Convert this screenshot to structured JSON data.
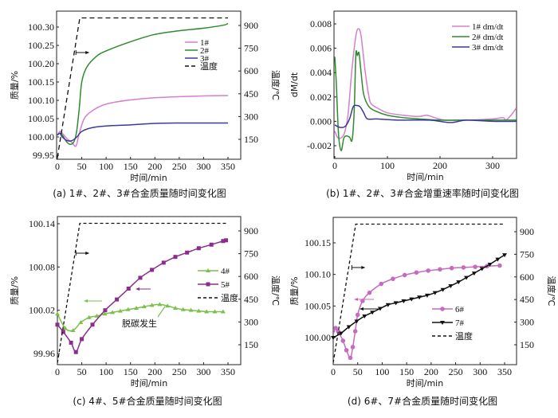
{
  "chart_data": [
    {
      "id": "a",
      "type": "line",
      "caption": "(a) 1#、2#、3#合金质量随时间变化图",
      "xlabel": "时间/min",
      "ylabel": "质量/%",
      "y2label": "温度/℃",
      "xlim": [
        0,
        350
      ],
      "ylim": [
        99.94,
        100.33
      ],
      "y2lim": [
        0,
        1000
      ],
      "xticks": [
        0,
        50,
        100,
        150,
        200,
        250,
        300,
        350
      ],
      "yticks": [
        99.95,
        100.0,
        100.05,
        100.1,
        100.15,
        100.2,
        100.25,
        100.3
      ],
      "ytick_labels": [
        "99.95",
        "100.00",
        "100.05",
        "100.10",
        "100.15",
        "100.20",
        "100.25",
        "100.30"
      ],
      "y2ticks": [
        150,
        300,
        450,
        600,
        750,
        900
      ],
      "legend": [
        "1#",
        "2#",
        "3#",
        "温度"
      ],
      "legend_position": "top-right",
      "series": [
        {
          "name": "1#",
          "color": "#d57fcf",
          "axis": "left",
          "style": "solid",
          "x": [
            0,
            5,
            10,
            20,
            30,
            38,
            45,
            55,
            70,
            90,
            110,
            150,
            200,
            250,
            300,
            350
          ],
          "y": [
            100.005,
            100.015,
            100.01,
            99.995,
            99.985,
            99.975,
            100.01,
            100.05,
            100.07,
            100.085,
            100.093,
            100.101,
            100.107,
            100.11,
            100.112,
            100.113
          ]
        },
        {
          "name": "2#",
          "color": "#2e8b2e",
          "axis": "left",
          "style": "solid",
          "x": [
            0,
            5,
            10,
            20,
            28,
            35,
            40,
            45,
            50,
            60,
            80,
            100,
            150,
            200,
            250,
            300,
            340,
            350
          ],
          "y": [
            100.005,
            100.01,
            100.005,
            99.985,
            99.98,
            99.99,
            100.02,
            100.08,
            100.15,
            100.19,
            100.22,
            100.235,
            100.26,
            100.28,
            100.29,
            100.297,
            100.305,
            100.31
          ]
        },
        {
          "name": "3#",
          "color": "#3a3a9a",
          "axis": "left",
          "style": "solid",
          "x": [
            0,
            5,
            10,
            20,
            30,
            40,
            50,
            70,
            100,
            150,
            200,
            250,
            300,
            350
          ],
          "y": [
            100.005,
            100.01,
            100.0,
            99.99,
            99.99,
            100.0,
            100.015,
            100.025,
            100.03,
            100.033,
            100.037,
            100.038,
            100.038,
            100.038
          ]
        },
        {
          "name": "温度",
          "color": "#111111",
          "axis": "right",
          "style": "dashed",
          "x": [
            0,
            46,
            350
          ],
          "y": [
            30,
            950,
            950
          ]
        }
      ],
      "annotations": [
        {
          "type": "arrow",
          "direction": "right",
          "meaning": "temperature curve uses right axis",
          "at": [
            38,
            770
          ]
        }
      ]
    },
    {
      "id": "b",
      "type": "line",
      "caption": "(b) 1#、2#、3#合金增重速率随时间变化图",
      "xlabel": "时间/min",
      "ylabel": "dM/dt",
      "xlim": [
        0,
        350
      ],
      "ylim": [
        -0.003,
        0.009
      ],
      "xticks": [
        0,
        100,
        200,
        300
      ],
      "yticks": [
        -0.002,
        0.0,
        0.002,
        0.004,
        0.006,
        0.008
      ],
      "ytick_labels": [
        "-0.002",
        "0.000",
        "0.002",
        "0.004",
        "0.006",
        "0.008"
      ],
      "legend": [
        "1# dm/dt",
        "2# dm/dt",
        "3# dm/dt"
      ],
      "legend_position": "top-right",
      "series": [
        {
          "name": "1# dm/dt",
          "color": "#d57fcf",
          "x": [
            0,
            5,
            10,
            18,
            25,
            32,
            40,
            45,
            50,
            58,
            65,
            70,
            85,
            100,
            130,
            160,
            175,
            190,
            210,
            250,
            300,
            320,
            325,
            335,
            345
          ],
          "y": [
            -0.0008,
            -0.0013,
            -0.0014,
            -0.001,
            0.0005,
            0.004,
            0.007,
            0.0076,
            0.007,
            0.004,
            0.002,
            0.0014,
            0.001,
            0.0007,
            0.0005,
            0.0004,
            0.0005,
            0.0003,
            0.0001,
            0.0001,
            0.0002,
            0.0003,
            0.0001,
            0.0005,
            0.0011
          ]
        },
        {
          "name": "2# dm/dt",
          "color": "#2e8b2e",
          "x": [
            0,
            3,
            7,
            12,
            17,
            22,
            28,
            33,
            37,
            40,
            43,
            46,
            50,
            55,
            65,
            80,
            100,
            130,
            160,
            200,
            250,
            300,
            345
          ],
          "y": [
            0.0053,
            0.003,
            -0.001,
            -0.0024,
            -0.0014,
            -0.0012,
            -0.0013,
            -0.0015,
            0.001,
            0.0055,
            0.0054,
            0.0056,
            0.004,
            0.0022,
            0.0012,
            0.0008,
            0.0005,
            0.0003,
            0.0002,
            0.0001,
            0.0001,
            0.0001,
            0.0001
          ]
        },
        {
          "name": "3# dm/dt",
          "color": "#3a3a9a",
          "x": [
            0,
            10,
            20,
            28,
            35,
            42,
            48,
            55,
            62,
            80,
            120,
            180,
            220,
            250,
            300,
            345
          ],
          "y": [
            -0.0003,
            -0.0005,
            -0.0004,
            0.0002,
            0.0012,
            0.0013,
            0.0012,
            0.0007,
            0.0002,
            0.0002,
            0.0001,
            0.0001,
            -0.0001,
            0.0001,
            0.0,
            0.0
          ]
        }
      ]
    },
    {
      "id": "c",
      "type": "line",
      "caption": "(c) 4#、5#合金质量随时间变化图",
      "xlabel": "时间/min",
      "ylabel": "质量/%",
      "y2label": "温度/℃",
      "xlim": [
        0,
        350
      ],
      "ylim": [
        99.95,
        100.145
      ],
      "y2lim": [
        0,
        1000
      ],
      "xticks": [
        0,
        50,
        100,
        150,
        200,
        250,
        300,
        350
      ],
      "yticks": [
        99.96,
        100.02,
        100.08,
        100.14
      ],
      "ytick_labels": [
        "99.96",
        "100.02",
        "100.08",
        "100.14"
      ],
      "y2ticks": [
        150,
        300,
        450,
        600,
        750,
        900
      ],
      "legend": [
        "4#",
        "5#",
        "温度"
      ],
      "legend_position": "right",
      "annotation_text": "脱碳发生",
      "series": [
        {
          "name": "4#",
          "color": "#7cc04a",
          "marker": "triangle",
          "axis": "left",
          "x": [
            0,
            16,
            32,
            48,
            65,
            81,
            97,
            113,
            129,
            145,
            162,
            178,
            194,
            210,
            226,
            242,
            258,
            274,
            290,
            306,
            323,
            340
          ],
          "y": [
            100.015,
            99.995,
            99.992,
            100.003,
            100.01,
            100.012,
            100.015,
            100.017,
            100.019,
            100.021,
            100.023,
            100.025,
            100.027,
            100.028,
            100.026,
            100.023,
            100.021,
            100.02,
            100.019,
            100.018,
            100.018,
            100.018
          ]
        },
        {
          "name": "5#",
          "color": "#8b2e8b",
          "marker": "square",
          "axis": "left",
          "x": [
            0,
            12,
            28,
            38,
            50,
            72,
            98,
            122,
            146,
            170,
            194,
            218,
            242,
            266,
            290,
            316,
            340,
            346
          ],
          "y": [
            100.0,
            99.99,
            99.975,
            99.962,
            99.98,
            100.0,
            100.02,
            100.035,
            100.05,
            100.065,
            100.076,
            100.086,
            100.094,
            100.1,
            100.106,
            100.111,
            100.116,
            100.117
          ]
        },
        {
          "name": "温度",
          "color": "#111111",
          "style": "dashed",
          "axis": "right",
          "x": [
            0,
            46,
            350
          ],
          "y": [
            30,
            950,
            950
          ]
        }
      ]
    },
    {
      "id": "d",
      "type": "line",
      "caption": "(d) 6#、7#合金质量随时间变化图",
      "xlabel": "时间/min",
      "ylabel": "质量/%",
      "y2label": "温度/℃",
      "xlim": [
        0,
        350
      ],
      "ylim": [
        99.958,
        100.192
      ],
      "y2lim": [
        0,
        1000
      ],
      "xticks": [
        0,
        50,
        100,
        150,
        200,
        250,
        300,
        350
      ],
      "yticks": [
        100.0,
        100.05,
        100.1,
        100.15
      ],
      "ytick_labels": [
        "100.00",
        "100.05",
        "100.10",
        "100.15"
      ],
      "y2ticks": [
        150,
        300,
        450,
        600,
        750,
        900
      ],
      "legend": [
        "6#",
        "7#",
        "温度"
      ],
      "legend_position": "center-right",
      "series": [
        {
          "name": "6#",
          "color": "#c86bc0",
          "marker": "circle",
          "axis": "left",
          "x": [
            0,
            5,
            10,
            20,
            27,
            35,
            40,
            45,
            50,
            60,
            74,
            98,
            122,
            146,
            170,
            194,
            218,
            242,
            266,
            290,
            314,
            340
          ],
          "y": [
            100.005,
            100.015,
            100.01,
            99.995,
            99.98,
            99.968,
            99.985,
            100.01,
            100.036,
            100.058,
            100.071,
            100.085,
            100.093,
            100.099,
            100.103,
            100.106,
            100.108,
            100.11,
            100.111,
            100.112,
            100.113,
            100.114
          ]
        },
        {
          "name": "7#",
          "color": "#111111",
          "marker": "triangle-down",
          "axis": "left",
          "x": [
            0,
            16,
            32,
            48,
            64,
            80,
            96,
            112,
            128,
            144,
            160,
            176,
            192,
            208,
            224,
            240,
            256,
            272,
            288,
            304,
            320,
            336,
            350
          ],
          "y": [
            100.0,
            100.007,
            100.017,
            100.026,
            100.034,
            100.04,
            100.046,
            100.052,
            100.055,
            100.058,
            100.061,
            100.064,
            100.067,
            100.071,
            100.076,
            100.082,
            100.088,
            100.095,
            100.102,
            100.109,
            100.116,
            100.124,
            100.131
          ]
        },
        {
          "name": "温度",
          "color": "#111111",
          "style": "dashed",
          "axis": "right",
          "x": [
            0,
            46,
            350
          ],
          "y": [
            30,
            950,
            950
          ]
        }
      ]
    }
  ]
}
